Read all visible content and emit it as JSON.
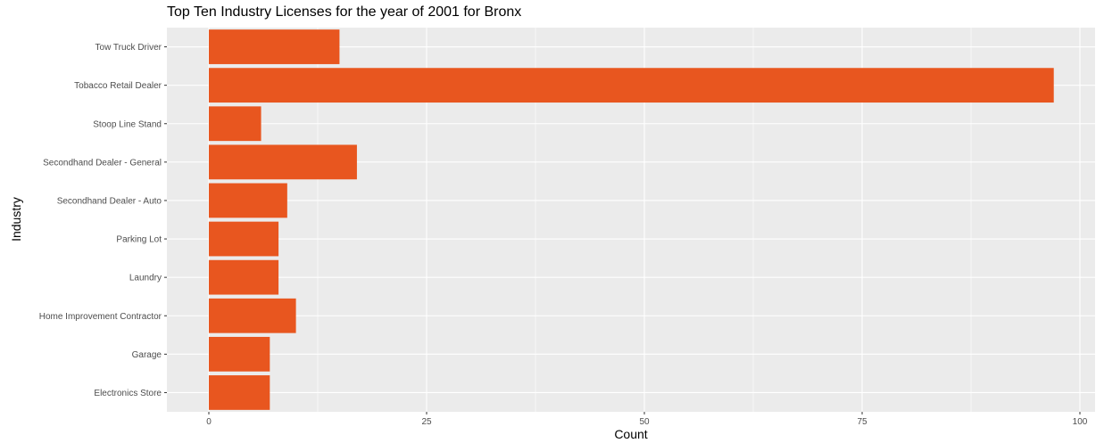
{
  "chart_data": {
    "type": "bar",
    "orientation": "horizontal",
    "title": "Top Ten Industry Licenses for the year of 2001 for Bronx",
    "xlabel": "Count",
    "ylabel": "Industry",
    "categories": [
      "Tow Truck Driver",
      "Tobacco Retail Dealer",
      "Stoop Line Stand",
      "Secondhand Dealer - General",
      "Secondhand Dealer - Auto",
      "Parking Lot",
      "Laundry",
      "Home Improvement Contractor",
      "Garage",
      "Electronics Store"
    ],
    "values": [
      15,
      97,
      6,
      17,
      9,
      8,
      8,
      10,
      7,
      7
    ],
    "xlim": [
      0,
      100
    ],
    "x_ticks": [
      0,
      25,
      50,
      75,
      100
    ],
    "grid": true,
    "bar_color": "#E8561F",
    "panel_background": "#EBEBEB",
    "grid_color": "#FFFFFF"
  }
}
